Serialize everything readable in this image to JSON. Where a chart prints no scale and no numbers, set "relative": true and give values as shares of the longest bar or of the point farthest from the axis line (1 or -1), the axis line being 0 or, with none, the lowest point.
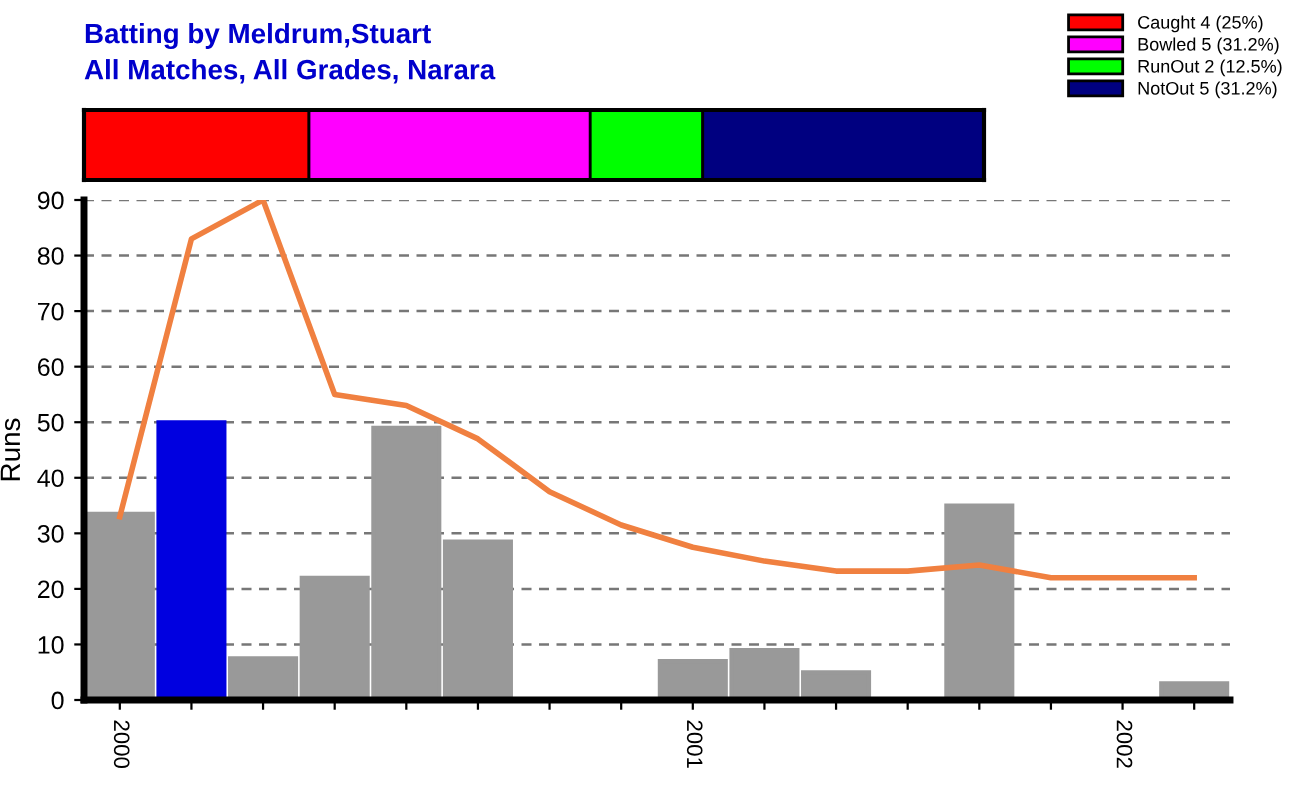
{
  "chart_data": [
    {
      "type": "bar",
      "title": "Batting by Meldrum,Stuart",
      "subtitle": "All Matches, All Grades, Narara",
      "orientation": "horizontal",
      "stacked": true,
      "relative": true,
      "categories": [
        null
      ],
      "legend": "top right",
      "series": [
        {
          "name": "Caught 4 (25%)",
          "color": "#ff0000",
          "values": [
            0.25
          ]
        },
        {
          "name": "Bowled 5 (31.2%)",
          "color": "#ff00ff",
          "values": [
            0.3125
          ]
        },
        {
          "name": "RunOut 2 (12.5%)",
          "color": "#00ff00",
          "values": [
            0.125
          ]
        },
        {
          "name": "NotOut 5 (31.2%)",
          "color": "#000080",
          "values": [
            0.3125
          ]
        }
      ]
    },
    {
      "type": "bar",
      "ylabel": "Runs",
      "ylim": [
        0,
        90
      ],
      "yticks": [
        0,
        10,
        20,
        30,
        40,
        50,
        60,
        70,
        80,
        90
      ],
      "grid": "y",
      "categories": [
        "2000",
        null,
        null,
        null,
        null,
        null,
        null,
        null,
        "2001",
        null,
        null,
        null,
        null,
        null,
        "2002",
        null
      ],
      "series": [
        {
          "type": "bar",
          "values": [
            33.5,
            50,
            7.5,
            22,
            49,
            28.5,
            0,
            0,
            7,
            9,
            5,
            0,
            35,
            0,
            0,
            3
          ],
          "colors": [
            "#999999",
            "#0000e0",
            "#999999",
            "#999999",
            "#999999",
            "#999999",
            "#006400",
            "#006400",
            "#999999",
            "#999999",
            "#999999",
            "#006400",
            "#999999",
            "#006400",
            "#006400",
            "#999999"
          ]
        },
        {
          "type": "line",
          "color": "#f08040",
          "values": [
            33,
            83,
            90,
            55,
            53,
            47,
            37.5,
            31.5,
            27.5,
            25,
            23.2,
            23.2,
            24.3,
            22,
            22,
            22
          ]
        }
      ]
    }
  ]
}
